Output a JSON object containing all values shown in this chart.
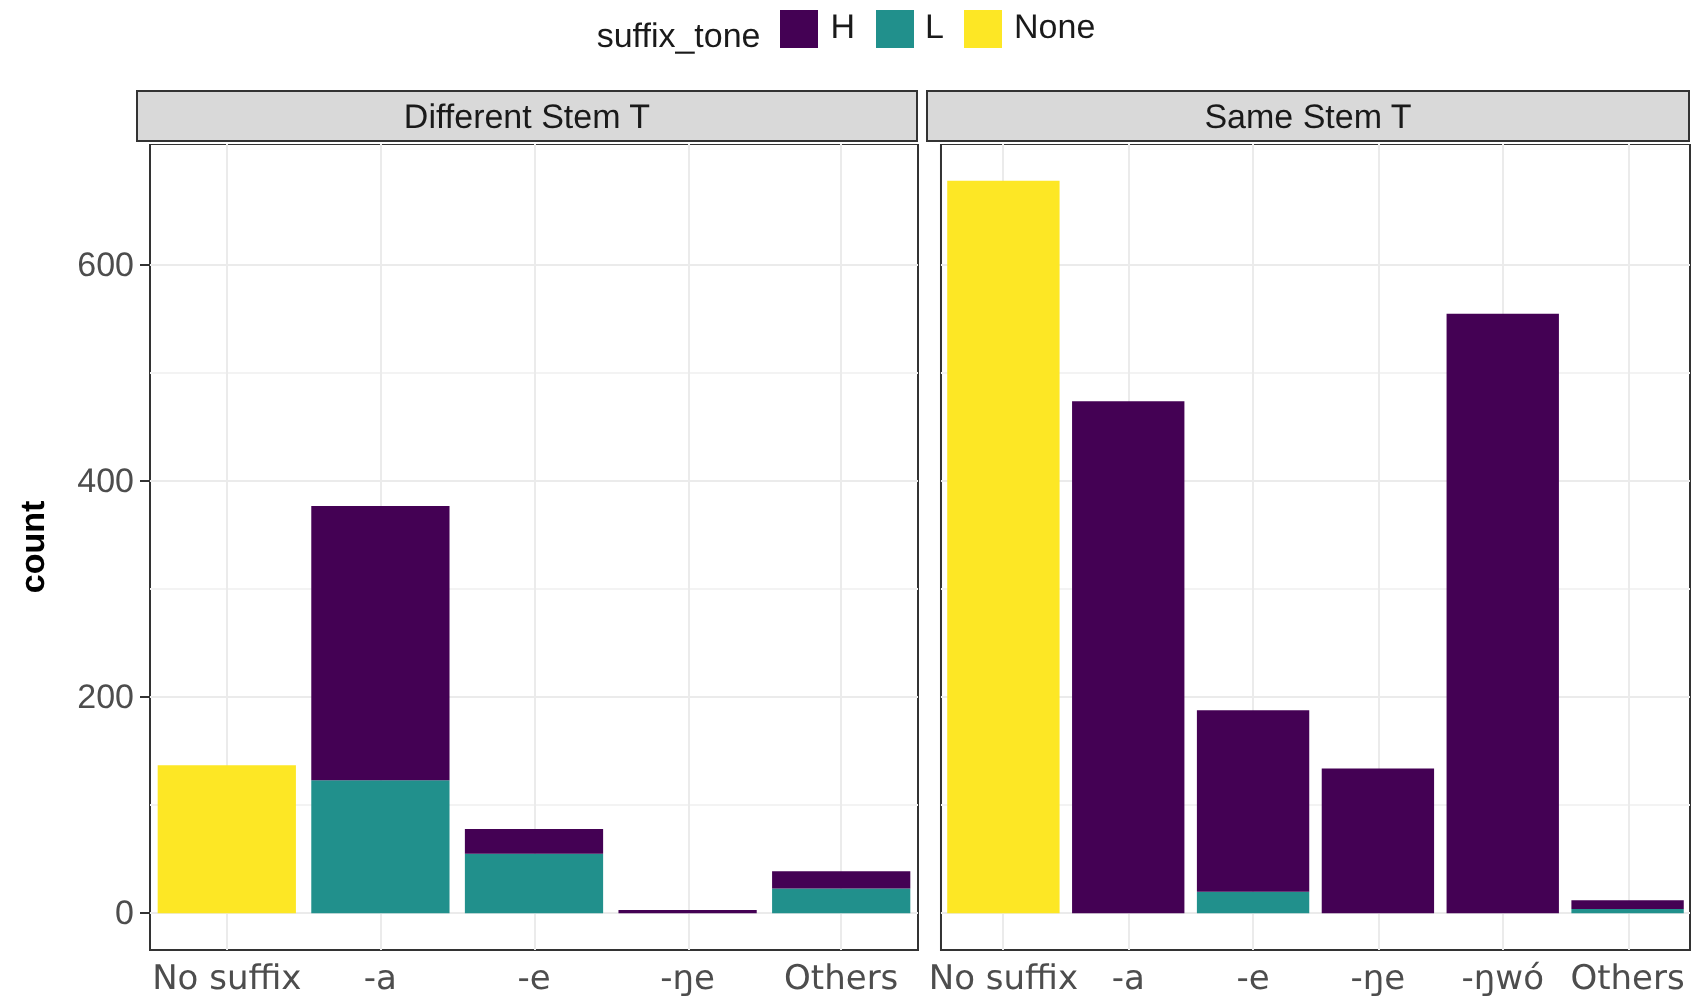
{
  "chart_data": [
    {
      "type": "bar",
      "title": "Different Stem T",
      "ylabel": "count",
      "legend_title": "suffix_tone",
      "legend": "top",
      "stacked": true,
      "grid": true,
      "categories": [
        "No suffix",
        "-a",
        "-e",
        "-ŋe",
        "Others"
      ],
      "series": [
        {
          "name": "L",
          "color": "#21908c",
          "values": [
            null,
            123,
            55,
            null,
            23
          ]
        },
        {
          "name": "H",
          "color": "#440154",
          "values": [
            null,
            254,
            23,
            3,
            16
          ]
        },
        {
          "name": "None",
          "color": "#fde725",
          "values": [
            137,
            null,
            null,
            null,
            null
          ]
        }
      ],
      "ylim": [
        -34,
        712
      ],
      "yticks": [
        0,
        200,
        400,
        600
      ]
    },
    {
      "type": "bar",
      "title": "Same Stem T",
      "stacked": true,
      "grid": true,
      "tick_labels": "x",
      "categories": [
        "No suffix",
        "-a",
        "-e",
        "-ŋe",
        "-ŋwó",
        "Others"
      ],
      "series": [
        {
          "color": "#21908c",
          "values": [
            null,
            null,
            20,
            null,
            null,
            4
          ]
        },
        {
          "color": "#440154",
          "values": [
            null,
            474,
            168,
            134,
            555,
            8
          ]
        },
        {
          "color": "#fde725",
          "values": [
            678,
            null,
            null,
            null,
            null,
            null
          ]
        }
      ],
      "ylim": [
        -34,
        712
      ],
      "yticks": [
        0,
        200,
        400,
        600
      ]
    }
  ]
}
